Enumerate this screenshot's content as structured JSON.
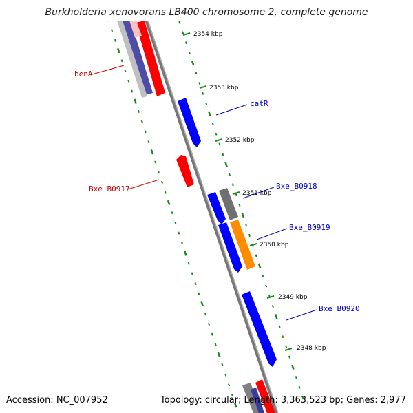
{
  "title": "Burkholderia xenovorans LB400 chromosome 2, complete genome",
  "footer": {
    "accession": "Accession: NC_007952",
    "summary": "Topology: circular; Length: 3,363,523 bp; Genes: 2,977"
  },
  "colors": {
    "forward_cds": "#ff0000",
    "reverse_cds": "#0000ff",
    "other": "#808080",
    "highlight": "#ff8c00",
    "tick": "#1a8a1a",
    "forward_label": "#cc0000",
    "reverse_label": "#0000cc"
  },
  "kbp_markers": [
    "2354 kbp",
    "2353 kbp",
    "2352 kbp",
    "2351 kbp",
    "2350 kbp",
    "2349 kbp",
    "2348 kbp"
  ],
  "gene_labels": [
    {
      "text": "benA",
      "strand": "forward"
    },
    {
      "text": "catR",
      "strand": "reverse"
    },
    {
      "text": "Bxe_B0917",
      "strand": "forward"
    },
    {
      "text": "Bxe_B0918",
      "strand": "reverse"
    },
    {
      "text": "Bxe_B0919",
      "strand": "reverse"
    },
    {
      "text": "Bxe_B0920",
      "strand": "reverse"
    }
  ]
}
